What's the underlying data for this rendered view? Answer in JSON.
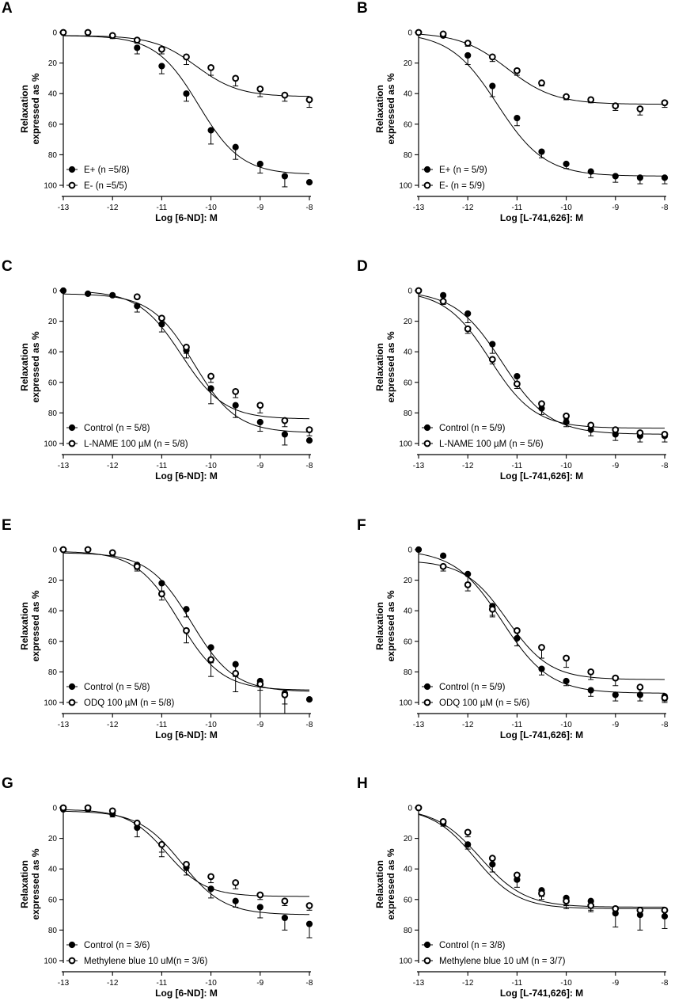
{
  "chart_data": [
    {
      "panel": "A",
      "type": "scatter",
      "xlabel": "Log [6-ND]: M",
      "ylabel": [
        "Relaxation",
        "expressed as %"
      ],
      "xlim": [
        -13,
        -8
      ],
      "ylim": [
        0,
        100
      ],
      "y_inverted": true,
      "xticks": [
        -13,
        -12,
        -11,
        -10,
        -9,
        -8
      ],
      "yticks": [
        0,
        20,
        40,
        60,
        80,
        100
      ],
      "legend_position": "bottom-left",
      "series": [
        {
          "name": "E+ (n =5/8)",
          "marker": "filled",
          "x": [
            -13,
            -12.5,
            -12,
            -11.5,
            -11,
            -10.5,
            -10,
            -9.5,
            -9,
            -8.5,
            -8
          ],
          "y": [
            0,
            0,
            2,
            10,
            22,
            40,
            64,
            75,
            86,
            94,
            98
          ],
          "err": [
            0,
            0,
            2,
            4,
            5,
            5,
            9,
            8,
            6,
            7,
            0
          ],
          "fit": {
            "top": 2,
            "bottom": 93,
            "logEC50": -10.25,
            "hill": 1.0
          }
        },
        {
          "name": "E- (n =5/5)",
          "marker": "open",
          "x": [
            -13,
            -12.5,
            -12,
            -11.5,
            -11,
            -10.5,
            -10,
            -9.5,
            -9,
            -8.5,
            -8
          ],
          "y": [
            0,
            0,
            2,
            5,
            11,
            16,
            23,
            30,
            37,
            41,
            44
          ],
          "err": [
            0,
            0,
            1,
            2,
            3,
            5,
            5,
            5,
            5,
            4,
            5
          ],
          "fit": {
            "top": 2,
            "bottom": 42,
            "logEC50": -10.3,
            "hill": 1.0
          }
        }
      ]
    },
    {
      "panel": "B",
      "type": "scatter",
      "xlabel": "Log [L-741,626]: M",
      "ylabel": [
        "Relaxation",
        "expressed as %"
      ],
      "xlim": [
        -13,
        -8
      ],
      "ylim": [
        0,
        100
      ],
      "y_inverted": true,
      "xticks": [
        -13,
        -12,
        -11,
        -10,
        -9,
        -8
      ],
      "yticks": [
        0,
        20,
        40,
        60,
        80,
        100
      ],
      "legend_position": "bottom-left",
      "series": [
        {
          "name": "E+ (n = 5/9)",
          "marker": "filled",
          "x": [
            -13,
            -12.5,
            -12,
            -11.5,
            -11,
            -10.5,
            -10,
            -9.5,
            -9,
            -8.5,
            -8
          ],
          "y": [
            0,
            2,
            15,
            35,
            56,
            78,
            86,
            91,
            94,
            95,
            95
          ],
          "err": [
            0,
            1,
            6,
            7,
            5,
            4,
            3,
            4,
            4,
            4,
            4
          ],
          "fit": {
            "top": 0,
            "bottom": 94,
            "logEC50": -11.4,
            "hill": 0.9
          }
        },
        {
          "name": "E- (n = 5/9)",
          "marker": "open",
          "x": [
            -13,
            -12.5,
            -12,
            -11.5,
            -11,
            -10.5,
            -10,
            -9.5,
            -9,
            -8.5,
            -8
          ],
          "y": [
            0,
            1,
            7,
            16,
            25,
            33,
            42,
            44,
            48,
            50,
            46
          ],
          "err": [
            0,
            1,
            2,
            3,
            3,
            2,
            2,
            2,
            3,
            4,
            3
          ],
          "fit": {
            "top": 0,
            "bottom": 47,
            "logEC50": -11.2,
            "hill": 0.9
          }
        }
      ]
    },
    {
      "panel": "C",
      "type": "scatter",
      "xlabel": "Log [6-ND]: M",
      "ylabel": [
        "Relaxation",
        "expressed as %"
      ],
      "xlim": [
        -13,
        -8
      ],
      "ylim": [
        0,
        100
      ],
      "y_inverted": true,
      "xticks": [
        -13,
        -12,
        -11,
        -10,
        -9,
        -8
      ],
      "yticks": [
        0,
        20,
        40,
        60,
        80,
        100
      ],
      "legend_position": "bottom-left",
      "series": [
        {
          "name": "Control (n = 5/8)",
          "marker": "filled",
          "x": [
            -13,
            -12.5,
            -12,
            -11.5,
            -11,
            -10.5,
            -10,
            -9.5,
            -9,
            -8.5,
            -8
          ],
          "y": [
            0,
            2,
            3,
            10,
            22,
            39,
            64,
            75,
            86,
            94,
            98
          ],
          "err": [
            0,
            0,
            1,
            4,
            5,
            5,
            10,
            8,
            6,
            7,
            0
          ],
          "fit": {
            "top": 2,
            "bottom": 93,
            "logEC50": -10.35,
            "hill": 1.0
          }
        },
        {
          "name": "L-NAME 100 µM  (n = 5/8)",
          "marker": "open",
          "x": [
            -11.5,
            -11,
            -10.5,
            -10,
            -9.5,
            -9,
            -8.5,
            -8
          ],
          "y": [
            4,
            18,
            37,
            56,
            66,
            75,
            85,
            91
          ],
          "err": [
            1,
            3,
            4,
            4,
            4,
            5,
            4,
            4
          ],
          "fit": {
            "top": 0,
            "bottom": 84,
            "logEC50": -10.6,
            "hill": 1.0,
            "x_start": -12.5
          }
        }
      ]
    },
    {
      "panel": "D",
      "type": "scatter",
      "xlabel": "Log [L-741,626]: M",
      "ylabel": [
        "Relaxation",
        "expressed as %"
      ],
      "xlim": [
        -13,
        -8
      ],
      "ylim": [
        0,
        100
      ],
      "y_inverted": true,
      "xticks": [
        -13,
        -12,
        -11,
        -10,
        -9,
        -8
      ],
      "yticks": [
        0,
        20,
        40,
        60,
        80,
        100
      ],
      "legend_position": "bottom-left",
      "series": [
        {
          "name": "Control (n = 5/9)",
          "marker": "filled",
          "x": [
            -13,
            -12.5,
            -12,
            -11.5,
            -11,
            -10.5,
            -10,
            -9.5,
            -9,
            -8.5,
            -8
          ],
          "y": [
            0,
            3,
            15,
            35,
            56,
            77,
            86,
            91,
            94,
            95,
            95
          ],
          "err": [
            0,
            1,
            6,
            6,
            5,
            4,
            3,
            4,
            4,
            4,
            4
          ],
          "fit": {
            "top": 0,
            "bottom": 94,
            "logEC50": -11.3,
            "hill": 0.9
          }
        },
        {
          "name": "L-NAME 100 µM  (n = 5/6)",
          "marker": "open",
          "x": [
            -13,
            -12.5,
            -12,
            -11.5,
            -11,
            -10.5,
            -10,
            -9.5,
            -9,
            -8.5,
            -8
          ],
          "y": [
            0,
            7,
            25,
            45,
            61,
            74,
            82,
            88,
            91,
            93,
            94
          ],
          "err": [
            0,
            2,
            3,
            3,
            3,
            3,
            2,
            2,
            2,
            2,
            2
          ],
          "fit": {
            "top": 0,
            "bottom": 90,
            "logEC50": -11.55,
            "hill": 0.95
          }
        }
      ]
    },
    {
      "panel": "E",
      "type": "scatter",
      "xlabel": "Log [6-ND]: M",
      "ylabel": [
        "Relaxation",
        "expressed as %"
      ],
      "xlim": [
        -13,
        -8
      ],
      "ylim": [
        0,
        100
      ],
      "y_inverted": true,
      "xticks": [
        -13,
        -12,
        -11,
        -10,
        -9,
        -8
      ],
      "yticks": [
        0,
        20,
        40,
        60,
        80,
        100
      ],
      "legend_position": "bottom-left",
      "series": [
        {
          "name": "Control (n = 5/8)",
          "marker": "filled",
          "x": [
            -13,
            -12.5,
            -12,
            -11.5,
            -11,
            -10.5,
            -10,
            -9.5,
            -9,
            -8.5,
            -8
          ],
          "y": [
            0,
            0,
            2,
            10,
            22,
            39,
            64,
            75,
            86,
            94,
            98
          ],
          "err": [
            0,
            0,
            2,
            3,
            5,
            5,
            10,
            8,
            6,
            7,
            0
          ],
          "fit": {
            "top": 2,
            "bottom": 93,
            "logEC50": -10.4,
            "hill": 1.0
          }
        },
        {
          "name": "ODQ 100 µM  (n = 5/8)",
          "marker": "open",
          "x": [
            -13,
            -12.5,
            -12,
            -11.5,
            -11,
            -10.5,
            -10,
            -9.5,
            -9,
            -8.5
          ],
          "y": [
            0,
            0,
            2,
            11,
            29,
            53,
            72,
            81,
            88,
            95
          ],
          "err": [
            0,
            0,
            1,
            3,
            4,
            8,
            11,
            12,
            60,
            50
          ],
          "fit": {
            "top": 1,
            "bottom": 92,
            "logEC50": -10.65,
            "hill": 1.0
          }
        }
      ]
    },
    {
      "panel": "F",
      "type": "scatter",
      "xlabel": "Log [L-741,626]: M",
      "ylabel": [
        "Relaxation",
        "expressed as %"
      ],
      "xlim": [
        -13,
        -8
      ],
      "ylim": [
        0,
        100
      ],
      "y_inverted": true,
      "xticks": [
        -13,
        -12,
        -11,
        -10,
        -9,
        -8
      ],
      "yticks": [
        0,
        20,
        40,
        60,
        80,
        100
      ],
      "legend_position": "bottom-left",
      "series": [
        {
          "name": "Control (n = 5/9)",
          "marker": "filled",
          "x": [
            -13,
            -12.5,
            -12,
            -11.5,
            -11,
            -10.5,
            -10,
            -9.5,
            -9,
            -8.5,
            -8
          ],
          "y": [
            0,
            4,
            16,
            37,
            58,
            78,
            86,
            92,
            95,
            95,
            96
          ],
          "err": [
            0,
            1,
            6,
            6,
            5,
            4,
            3,
            4,
            4,
            4,
            3
          ],
          "fit": {
            "top": 0,
            "bottom": 94,
            "logEC50": -11.3,
            "hill": 0.9
          }
        },
        {
          "name": "ODQ 100 µM  (n = 5/6)",
          "marker": "open",
          "x": [
            -12.5,
            -12,
            -11.5,
            -11,
            -10.5,
            -10,
            -9.5,
            -9,
            -8.5,
            -8
          ],
          "y": [
            11,
            23,
            39,
            53,
            64,
            71,
            80,
            84,
            90,
            97
          ],
          "err": [
            3,
            4,
            5,
            5,
            7,
            6,
            5,
            5,
            4,
            3
          ],
          "fit": {
            "top": 7,
            "bottom": 85,
            "logEC50": -11.2,
            "hill": 1.0
          }
        }
      ]
    },
    {
      "panel": "G",
      "type": "scatter",
      "xlabel": "Log [6-ND]: M",
      "ylabel": [
        "Relaxation",
        "expressed as %"
      ],
      "xlim": [
        -13,
        -8
      ],
      "ylim": [
        0,
        100
      ],
      "y_inverted": true,
      "xticks": [
        -13,
        -12,
        -11,
        -10,
        -9,
        -8
      ],
      "yticks": [
        0,
        20,
        40,
        60,
        80,
        100
      ],
      "legend_position": "bottom-left",
      "series": [
        {
          "name": "Control (n = 3/6)",
          "marker": "filled",
          "x": [
            -13,
            -12.5,
            -12,
            -11.5,
            -11,
            -10.5,
            -10,
            -9.5,
            -9,
            -8.5,
            -8
          ],
          "y": [
            1,
            1,
            4,
            13,
            24,
            39,
            53,
            61,
            65,
            72,
            76
          ],
          "err": [
            0,
            1,
            2,
            6,
            8,
            5,
            6,
            4,
            7,
            8,
            9
          ],
          "fit": {
            "top": 2,
            "bottom": 70,
            "logEC50": -10.6,
            "hill": 1.0
          }
        },
        {
          "name": "Methylene blue 10 uM(n = 3/6)",
          "marker": "open",
          "x": [
            -13,
            -12.5,
            -12,
            -11.5,
            -11,
            -10.5,
            -10,
            -9.5,
            -9,
            -8.5,
            -8
          ],
          "y": [
            0,
            0,
            2,
            10,
            24,
            37,
            45,
            49,
            57,
            61,
            64
          ],
          "err": [
            0,
            0,
            1,
            3,
            5,
            4,
            4,
            4,
            3,
            3,
            3
          ],
          "fit": {
            "top": 1,
            "bottom": 58,
            "logEC50": -10.9,
            "hill": 1.1
          }
        }
      ]
    },
    {
      "panel": "H",
      "type": "scatter",
      "xlabel": "Log [L-741,626]: M",
      "ylabel": [
        "Relaxation",
        "expressed as %"
      ],
      "xlim": [
        -13,
        -8
      ],
      "ylim": [
        0,
        100
      ],
      "y_inverted": true,
      "xticks": [
        -13,
        -12,
        -11,
        -10,
        -9,
        -8
      ],
      "yticks": [
        0,
        20,
        40,
        60,
        80,
        100
      ],
      "legend_position": "bottom-left",
      "series": [
        {
          "name": "Control (n = 3/8)",
          "marker": "filled",
          "x": [
            -13,
            -12.5,
            -12,
            -11.5,
            -11,
            -10.5,
            -10,
            -9.5,
            -9,
            -8.5,
            -8
          ],
          "y": [
            0,
            10,
            24,
            37,
            47,
            54,
            59,
            61,
            69,
            70,
            71
          ],
          "err": [
            0,
            2,
            3,
            5,
            5,
            4,
            5,
            6,
            9,
            10,
            8
          ],
          "fit": {
            "top": 0,
            "bottom": 65,
            "logEC50": -11.75,
            "hill": 0.95
          }
        },
        {
          "name": "Methylene blue 10 uM  (n = 3/7)",
          "marker": "open",
          "x": [
            -13,
            -12.5,
            -12,
            -11.5,
            -11,
            -10.5,
            -10,
            -9.5,
            -9,
            -8.5,
            -8
          ],
          "y": [
            0,
            9,
            16,
            33,
            44,
            56,
            61,
            64,
            66,
            67,
            67
          ],
          "err": [
            0,
            2,
            3,
            4,
            4,
            4,
            5,
            4,
            4,
            4,
            4
          ],
          "fit": {
            "top": 0,
            "bottom": 66,
            "logEC50": -11.85,
            "hill": 1.0
          }
        }
      ]
    }
  ]
}
